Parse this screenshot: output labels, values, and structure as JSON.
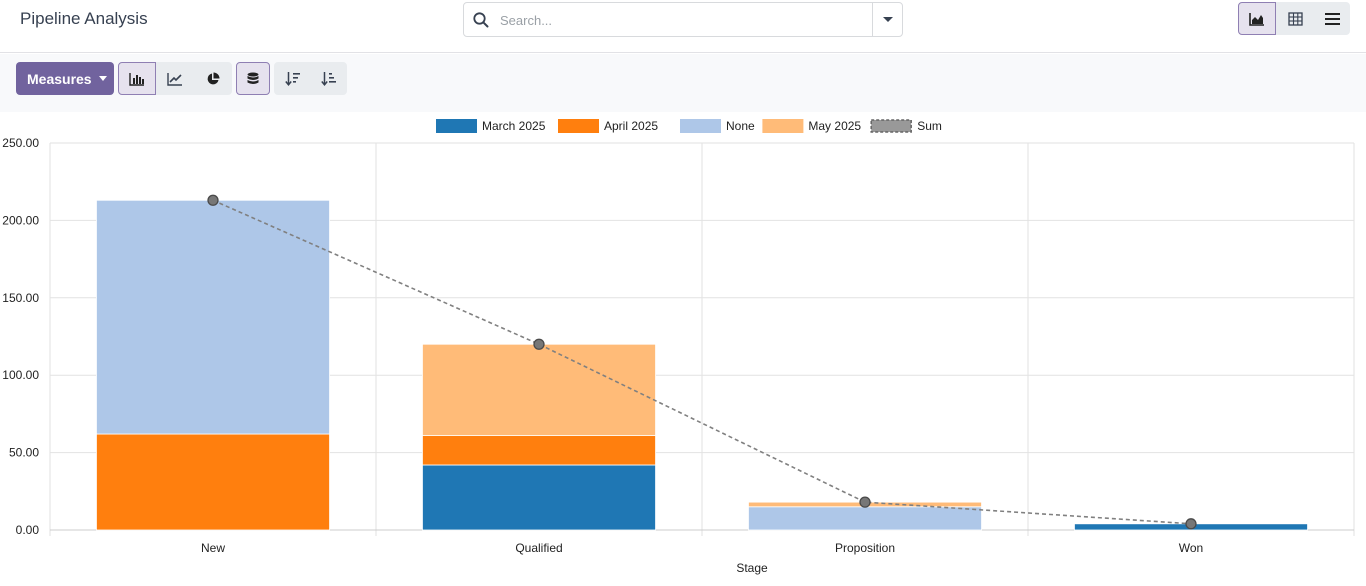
{
  "app": {
    "title": "Pipeline Analysis",
    "search": {
      "placeholder": "Search..."
    },
    "view_switcher": [
      {
        "name": "graph-view",
        "icon": "area-chart-icon",
        "active": true
      },
      {
        "name": "pivot-view",
        "icon": "table-icon",
        "active": false
      },
      {
        "name": "list-view",
        "icon": "list-icon",
        "active": false
      }
    ]
  },
  "toolbar": {
    "measures_label": "Measures",
    "chart_types": [
      {
        "icon": "bar-chart-icon",
        "active": true
      },
      {
        "icon": "line-chart-icon",
        "active": false
      },
      {
        "icon": "pie-chart-icon",
        "active": false
      }
    ],
    "stacked": {
      "icon": "stack-icon",
      "active": true
    },
    "sort": [
      {
        "icon": "sort-descending-icon",
        "active": false
      },
      {
        "icon": "sort-ascending-icon",
        "active": false
      }
    ]
  },
  "colors": {
    "march": "#1f77b4",
    "april": "#ff7f0e",
    "none": "#aec7e8",
    "may": "#ffbb78",
    "sum": "#808080",
    "accent": "#71639e"
  },
  "chart_data": {
    "type": "bar",
    "stacked": true,
    "categories": [
      "New",
      "Qualified",
      "Proposition",
      "Won"
    ],
    "xlabel": "Stage",
    "ylabel": "",
    "ylim": [
      0,
      250
    ],
    "yticks": [
      "0.00",
      "50.00",
      "100.00",
      "150.00",
      "200.00",
      "250.00"
    ],
    "grid": true,
    "legend_position": "top",
    "series": [
      {
        "name": "March 2025",
        "color": "#1f77b4",
        "values": [
          0,
          42,
          0,
          4
        ]
      },
      {
        "name": "April 2025",
        "color": "#ff7f0e",
        "values": [
          62,
          19,
          0,
          0
        ]
      },
      {
        "name": "None",
        "color": "#aec7e8",
        "values": [
          151,
          0,
          15,
          0
        ]
      },
      {
        "name": "May 2025",
        "color": "#ffbb78",
        "values": [
          0,
          59,
          3,
          0
        ]
      }
    ],
    "sum_series": {
      "name": "Sum",
      "color": "#808080",
      "values": [
        213,
        120,
        18,
        4
      ]
    }
  }
}
